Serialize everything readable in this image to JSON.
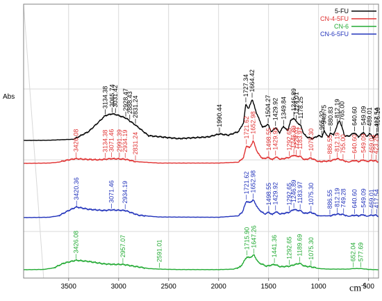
{
  "chart_data": {
    "type": "line",
    "title": "",
    "xlabel": "cm",
    "xlabel_superscript": "-1",
    "ylabel": "Abs",
    "xlim": [
      3950,
      400
    ],
    "x_reversed": true,
    "x_ticks": [
      3500,
      3000,
      2500,
      2000,
      1500,
      1000,
      500
    ],
    "grid": true,
    "legend_position": "top-right",
    "series": [
      {
        "name": "5-FU",
        "color": "#000000",
        "band_center": 60,
        "baseline": 0,
        "points": [
          [
            3950,
            0
          ],
          [
            3700,
            0.3
          ],
          [
            3450,
            2
          ],
          [
            3300,
            15
          ],
          [
            3200,
            31
          ],
          [
            3134.38,
            42
          ],
          [
            3065.74,
            45
          ],
          [
            3031.42,
            44
          ],
          [
            2928.47,
            38
          ],
          [
            2888.43,
            33
          ],
          [
            2831.24,
            26
          ],
          [
            2700,
            8
          ],
          [
            2400,
            3
          ],
          [
            2100,
            6
          ],
          [
            1990.44,
            11
          ],
          [
            1900,
            9
          ],
          [
            1800,
            15
          ],
          [
            1750,
            30
          ],
          [
            1727.34,
            62
          ],
          [
            1700,
            53
          ],
          [
            1664.42,
            70
          ],
          [
            1620,
            46
          ],
          [
            1560,
            22
          ],
          [
            1504.27,
            27
          ],
          [
            1470,
            14
          ],
          [
            1429.92,
            22
          ],
          [
            1390,
            13
          ],
          [
            1349.84,
            24
          ],
          [
            1310,
            16
          ],
          [
            1280,
            33
          ],
          [
            1246.89,
            38
          ],
          [
            1224.01,
            32
          ],
          [
            1178.25,
            25
          ],
          [
            1150,
            12
          ],
          [
            1120,
            6
          ],
          [
            1060,
            3
          ],
          [
            1000,
            8
          ],
          [
            965.22,
            6
          ],
          [
            943.75,
            16
          ],
          [
            900,
            5
          ],
          [
            880.83,
            13
          ],
          [
            850,
            9
          ],
          [
            812.19,
            26
          ],
          [
            790,
            34
          ],
          [
            765,
            22
          ],
          [
            740,
            8
          ],
          [
            700,
            7
          ],
          [
            640.6,
            13
          ],
          [
            600,
            6
          ],
          [
            549.09,
            14
          ],
          [
            520,
            6
          ],
          [
            489.01,
            12
          ],
          [
            450,
            4
          ],
          [
            417.54,
            11
          ],
          [
            406.1,
            12
          ],
          [
            400,
            4
          ]
        ],
        "labels": [
          3134.38,
          3065.74,
          3031.42,
          2928.47,
          2888.43,
          2831.24,
          1990.44,
          1727.34,
          1664.42,
          1504.27,
          1429.92,
          1349.84,
          1246.89,
          1224.01,
          1178.25,
          965.22,
          943.75,
          880.83,
          812.19,
          765.0,
          640.6,
          549.09,
          489.01,
          417.54,
          406.1
        ]
      },
      {
        "name": "CN-4-5FU",
        "color": "#e03030",
        "band_center": 175,
        "baseline": 0,
        "points": [
          [
            3950,
            0
          ],
          [
            3700,
            0.5
          ],
          [
            3600,
            2
          ],
          [
            3500,
            6
          ],
          [
            3426.08,
            8
          ],
          [
            3350,
            7
          ],
          [
            3200,
            6
          ],
          [
            3134.38,
            7
          ],
          [
            3071.46,
            8
          ],
          [
            2991.39,
            7.5
          ],
          [
            2934.19,
            7
          ],
          [
            2831.24,
            3
          ],
          [
            2600,
            0.5
          ],
          [
            2000,
            0.5
          ],
          [
            1800,
            2
          ],
          [
            1750,
            10
          ],
          [
            1721.62,
            30
          ],
          [
            1690,
            26
          ],
          [
            1652.98,
            38
          ],
          [
            1610,
            18
          ],
          [
            1560,
            8
          ],
          [
            1498.55,
            10
          ],
          [
            1460,
            6
          ],
          [
            1429.92,
            11
          ],
          [
            1380,
            7
          ],
          [
            1292.65,
            10
          ],
          [
            1246.89,
            14
          ],
          [
            1224.01,
            12
          ],
          [
            1183.97,
            12
          ],
          [
            1140,
            6
          ],
          [
            1075.3,
            9
          ],
          [
            1000,
            3
          ],
          [
            886.55,
            4
          ],
          [
            812.19,
            8
          ],
          [
            755,
            5
          ],
          [
            700,
            2
          ],
          [
            640.6,
            5
          ],
          [
            600,
            3
          ],
          [
            549.09,
            6
          ],
          [
            520,
            3
          ],
          [
            469.01,
            5
          ],
          [
            423.26,
            4
          ],
          [
            400,
            2
          ]
        ],
        "labels": [
          3426.08,
          3134.38,
          3071.46,
          2991.39,
          2934.19,
          2831.24,
          1721.62,
          1652.98,
          1498.55,
          1429.92,
          1292.65,
          1246.89,
          1224.01,
          1183.97,
          1075.3,
          886.55,
          812.19,
          755.0,
          640.6,
          549.09,
          469.01,
          423.26
        ]
      },
      {
        "name": "CN-6",
        "color": "#22aa33",
        "band_center": 385,
        "baseline": 0,
        "points": [
          [
            3950,
            0
          ],
          [
            3750,
            0.5
          ],
          [
            3650,
            3
          ],
          [
            3550,
            11
          ],
          [
            3426.08,
            16
          ],
          [
            3300,
            14
          ],
          [
            3150,
            10
          ],
          [
            3050,
            9
          ],
          [
            2957.07,
            9
          ],
          [
            2850,
            6
          ],
          [
            2700,
            2
          ],
          [
            2591.01,
            1
          ],
          [
            2400,
            0.3
          ],
          [
            2000,
            0.2
          ],
          [
            1850,
            1
          ],
          [
            1780,
            5
          ],
          [
            1715.9,
            22
          ],
          [
            1690,
            20
          ],
          [
            1647.26,
            25
          ],
          [
            1600,
            12
          ],
          [
            1520,
            6
          ],
          [
            1441.36,
            9
          ],
          [
            1380,
            5
          ],
          [
            1292.65,
            6
          ],
          [
            1230,
            9
          ],
          [
            1189.69,
            11
          ],
          [
            1140,
            6
          ],
          [
            1075.3,
            5
          ],
          [
            1000,
            2
          ],
          [
            900,
            1
          ],
          [
            800,
            1
          ],
          [
            700,
            1
          ],
          [
            652.04,
            2
          ],
          [
            577.69,
            2
          ],
          [
            500,
            0.5
          ],
          [
            400,
            0
          ]
        ],
        "labels": [
          3426.08,
          2957.07,
          2591.01,
          1715.9,
          1647.26,
          1441.36,
          1292.65,
          1189.69,
          1075.3,
          652.04,
          577.69
        ]
      },
      {
        "name": "CN-6-5FU",
        "color": "#2233bb",
        "band_center": 285,
        "baseline": 0,
        "points": [
          [
            3950,
            0
          ],
          [
            3700,
            0.5
          ],
          [
            3600,
            3
          ],
          [
            3500,
            12
          ],
          [
            3420.36,
            18
          ],
          [
            3300,
            14
          ],
          [
            3150,
            12
          ],
          [
            3071.46,
            13
          ],
          [
            2934.19,
            12
          ],
          [
            2800,
            4
          ],
          [
            2600,
            1
          ],
          [
            2000,
            0.5
          ],
          [
            1800,
            3
          ],
          [
            1760,
            10
          ],
          [
            1721.62,
            28
          ],
          [
            1690,
            25
          ],
          [
            1652.98,
            30
          ],
          [
            1600,
            14
          ],
          [
            1540,
            6
          ],
          [
            1498.55,
            9
          ],
          [
            1460,
            5
          ],
          [
            1429.92,
            10
          ],
          [
            1380,
            6
          ],
          [
            1292.65,
            9
          ],
          [
            1246.89,
            14
          ],
          [
            1210,
            12
          ],
          [
            1183.97,
            12
          ],
          [
            1140,
            7
          ],
          [
            1075.3,
            9
          ],
          [
            1000,
            3
          ],
          [
            886.55,
            3
          ],
          [
            812.19,
            6
          ],
          [
            749.28,
            5
          ],
          [
            700,
            2
          ],
          [
            640.6,
            4
          ],
          [
            600,
            3
          ],
          [
            549.09,
            5
          ],
          [
            520,
            2
          ],
          [
            469.01,
            4
          ],
          [
            417.54,
            4
          ],
          [
            400,
            1
          ]
        ],
        "labels": [
          3420.36,
          3071.46,
          2934.19,
          1721.62,
          1652.98,
          1498.55,
          1429.92,
          1292.65,
          1246.89,
          1183.97,
          1075.3,
          886.55,
          812.19,
          749.28,
          640.6,
          549.09,
          469.01,
          417.54
        ]
      }
    ],
    "legend_order": [
      0,
      1,
      2,
      3
    ]
  }
}
